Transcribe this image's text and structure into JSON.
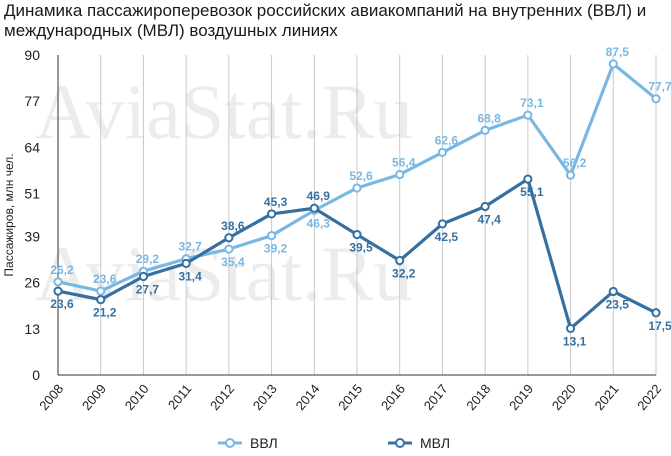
{
  "title": "Динамика пассажироперевозок российских авиакомпаний на внутренних (ВВЛ) и международных (МВЛ) воздушных линиях",
  "watermark": "AviaStat.Ru",
  "chart_data": {
    "type": "line",
    "x": [
      "2008",
      "2009",
      "2010",
      "2011",
      "2012",
      "2013",
      "2014",
      "2015",
      "2016",
      "2017",
      "2018",
      "2019",
      "2020",
      "2021",
      "2022"
    ],
    "ylabel": "Пассажиров, млн чел.",
    "xlabel": "",
    "ylim": [
      0,
      90
    ],
    "yticks": [
      0,
      13,
      26,
      39,
      51,
      64,
      77,
      90
    ],
    "grid": "vertical",
    "legend": "bottom",
    "series": [
      {
        "name": "ВВЛ",
        "color": "#7ab8e4",
        "values": [
          26.2,
          23.6,
          29.2,
          32.7,
          35.4,
          39.2,
          46.3,
          52.6,
          56.4,
          62.6,
          68.8,
          73.1,
          56.2,
          87.5,
          77.7
        ],
        "labels": [
          "26,2",
          "23,6",
          "29,2",
          "32,7",
          "35,4",
          "39,2",
          "46,3",
          "52,6",
          "56,4",
          "62,6",
          "68,8",
          "73,1",
          "56,2",
          "87,5",
          "77,7"
        ]
      },
      {
        "name": "МВЛ",
        "color": "#3570a0",
        "values": [
          23.6,
          21.2,
          27.7,
          31.4,
          38.6,
          45.3,
          46.9,
          39.5,
          32.2,
          42.5,
          47.4,
          55.1,
          13.1,
          23.5,
          17.5
        ],
        "labels": [
          "23,6",
          "21,2",
          "27,7",
          "31,4",
          "38,6",
          "45,3",
          "46,9",
          "39,5",
          "32,2",
          "42,5",
          "47,4",
          "55,1",
          "13,1",
          "23,5",
          "17,5"
        ]
      }
    ]
  }
}
